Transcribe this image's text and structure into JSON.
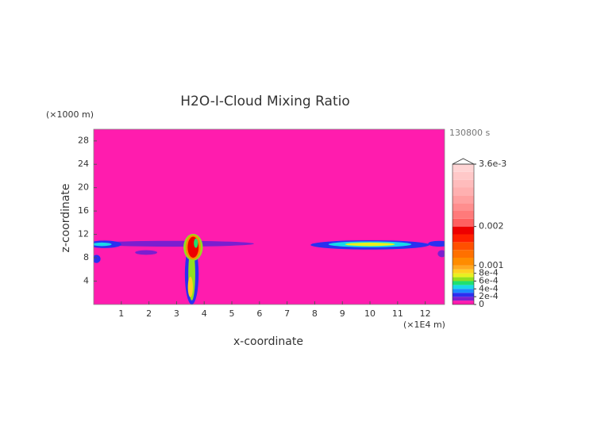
{
  "chart_data": {
    "type": "contour",
    "title": "H2O-I-Cloud Mixing Ratio",
    "x_label": "x-coordinate",
    "y_label": "z-coordinate",
    "x_unit": "(×1E4 m)",
    "y_unit": "(×1000 m)",
    "time_label": "130800 s",
    "xlim": [
      0,
      12.7
    ],
    "ylim": [
      0,
      30
    ],
    "xticks": [
      1,
      2,
      3,
      4,
      5,
      6,
      7,
      8,
      9,
      10,
      11,
      12
    ],
    "yticks": [
      4,
      8,
      12,
      16,
      20,
      24,
      28
    ],
    "colorbar": {
      "lim": [
        0,
        0.0036
      ],
      "levels": [
        0,
        0.0001,
        0.0002,
        0.0003,
        0.0004,
        0.0005,
        0.0006,
        0.0007,
        0.0008,
        0.0009,
        0.001,
        0.0012,
        0.0014,
        0.0016,
        0.0018,
        0.002,
        0.0022,
        0.0024,
        0.0026,
        0.0028,
        0.003,
        0.0032,
        0.0034,
        0.0036
      ],
      "colors": [
        "#ff1cae",
        "#7a1fd0",
        "#2a30f0",
        "#1a8cff",
        "#19d8e8",
        "#20e070",
        "#90e020",
        "#e8f020",
        "#ffd020",
        "#ffa820",
        "#ff8c00",
        "#ff7000",
        "#ff5000",
        "#ff2000",
        "#ee0000",
        "#ff6060",
        "#ff7a7a",
        "#ff8e8e",
        "#ffa0a0",
        "#ffb0b0",
        "#ffbcbc",
        "#ffc8c8",
        "#ffd4d4"
      ],
      "ticks": [
        0,
        {
          "value": 0.0002,
          "label": "2e-4"
        },
        {
          "value": 0.0004,
          "label": "4e-4"
        },
        {
          "value": 0.0006,
          "label": "6e-4"
        },
        {
          "value": 0.0008,
          "label": "8e-4"
        },
        0.001,
        0.002,
        {
          "value": 0.0036,
          "label": "3.6e-3"
        }
      ]
    },
    "features": [
      {
        "x": 2.9,
        "z": 10.4,
        "dx": 5.8,
        "dz": 1.0,
        "value": 0.00015
      },
      {
        "x": 0.4,
        "z": 10.3,
        "dx": 1.2,
        "dz": 1.3,
        "value": 0.00025
      },
      {
        "x": 0.3,
        "z": 10.3,
        "dx": 0.7,
        "dz": 0.6,
        "value": 0.00045
      },
      {
        "x": 0.1,
        "z": 7.8,
        "dx": 0.3,
        "dz": 1.4,
        "value": 0.00025
      },
      {
        "x": 1.9,
        "z": 8.9,
        "dx": 0.8,
        "dz": 0.8,
        "value": 0.00015
      },
      {
        "x": 3.55,
        "z": 5.2,
        "dx": 0.5,
        "dz": 10.4,
        "value": 0.00025
      },
      {
        "x": 3.55,
        "z": 5.2,
        "dx": 0.25,
        "dz": 9.0,
        "value": 0.0006
      },
      {
        "x": 3.5,
        "z": 3.0,
        "dx": 0.18,
        "dz": 3.5,
        "value": 0.0008
      },
      {
        "x": 3.6,
        "z": 9.8,
        "dx": 0.7,
        "dz": 4.6,
        "value": 0.0006
      },
      {
        "x": 3.6,
        "z": 9.8,
        "dx": 0.55,
        "dz": 4.2,
        "value": 0.0011
      },
      {
        "x": 3.6,
        "z": 9.8,
        "dx": 0.4,
        "dz": 3.6,
        "value": 0.0019
      },
      {
        "x": 3.7,
        "z": 10.5,
        "dx": 0.15,
        "dz": 1.6,
        "value": 0.0005
      },
      {
        "x": 10.0,
        "z": 10.2,
        "dx": 4.3,
        "dz": 1.6,
        "value": 0.00025
      },
      {
        "x": 10.0,
        "z": 10.3,
        "dx": 3.0,
        "dz": 1.0,
        "value": 0.00045
      },
      {
        "x": 10.0,
        "z": 10.3,
        "dx": 1.8,
        "dz": 0.6,
        "value": 0.00075
      },
      {
        "x": 12.5,
        "z": 10.4,
        "dx": 0.8,
        "dz": 1.0,
        "value": 0.00025
      },
      {
        "x": 12.6,
        "z": 8.7,
        "dx": 0.3,
        "dz": 1.2,
        "value": 0.00015
      }
    ]
  }
}
